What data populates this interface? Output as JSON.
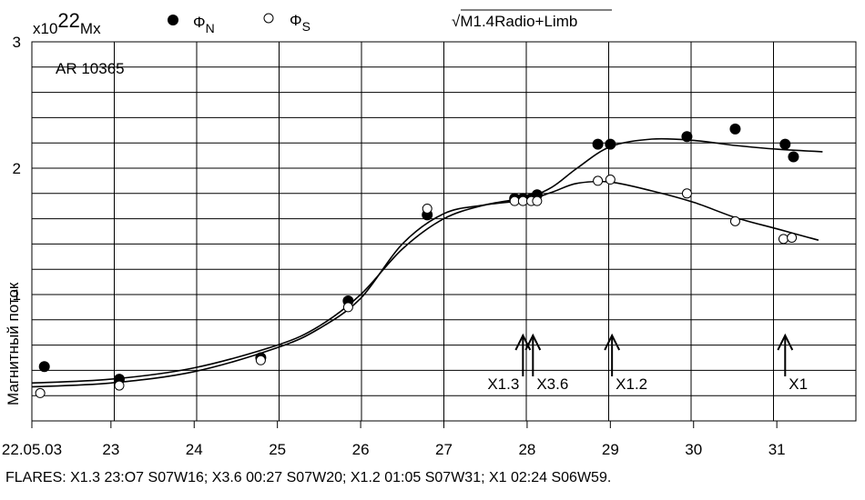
{
  "chart_data": {
    "type": "scatter",
    "unit_prefix": "x10",
    "unit_exp": "22",
    "unit_suffix": "Mx",
    "ylabel": "Магнитный поток",
    "ylim": [
      0,
      3
    ],
    "xlim": [
      22.05,
      31.95
    ],
    "yticks": [
      {
        "v": 1,
        "label": "1"
      },
      {
        "v": 2,
        "label": "2"
      },
      {
        "v": 3,
        "label": "3"
      }
    ],
    "xticks": [
      {
        "v": 22.05,
        "label": "22.05.03"
      },
      {
        "v": 23,
        "label": "23"
      },
      {
        "v": 24,
        "label": "24"
      },
      {
        "v": 25,
        "label": "25"
      },
      {
        "v": 26,
        "label": "26"
      },
      {
        "v": 27,
        "label": "27"
      },
      {
        "v": 28,
        "label": "28"
      },
      {
        "v": 29,
        "label": "29"
      },
      {
        "v": 30,
        "label": "30"
      },
      {
        "v": 31,
        "label": "31"
      }
    ],
    "region_label": "AR 10365",
    "event_label": "√M1.4Radio+Limb",
    "legend": [
      {
        "symbol": "filled",
        "sym": "Φ",
        "sub": "N"
      },
      {
        "symbol": "open",
        "sym": "Φ",
        "sub": "S"
      }
    ],
    "series": [
      {
        "key": "N",
        "marker": "filled",
        "points": [
          [
            22.2,
            0.43
          ],
          [
            23.1,
            0.33
          ],
          [
            24.8,
            0.5
          ],
          [
            25.85,
            0.95
          ],
          [
            26.8,
            1.63
          ],
          [
            27.85,
            1.76
          ],
          [
            27.95,
            1.76
          ],
          [
            28.05,
            1.76
          ],
          [
            28.12,
            1.79
          ],
          [
            28.85,
            2.19
          ],
          [
            29.0,
            2.19
          ],
          [
            29.92,
            2.25
          ],
          [
            30.5,
            2.31
          ],
          [
            31.1,
            2.19
          ],
          [
            31.2,
            2.09
          ]
        ],
        "fit": [
          [
            22.05,
            0.3
          ],
          [
            23.0,
            0.33
          ],
          [
            24.0,
            0.42
          ],
          [
            25.0,
            0.6
          ],
          [
            25.5,
            0.75
          ],
          [
            26.0,
            1.0
          ],
          [
            26.5,
            1.36
          ],
          [
            27.0,
            1.6
          ],
          [
            27.5,
            1.71
          ],
          [
            28.0,
            1.77
          ],
          [
            28.3,
            1.85
          ],
          [
            28.6,
            2.0
          ],
          [
            29.0,
            2.17
          ],
          [
            29.5,
            2.23
          ],
          [
            30.0,
            2.22
          ],
          [
            30.5,
            2.18
          ],
          [
            31.0,
            2.15
          ],
          [
            31.55,
            2.13
          ]
        ]
      },
      {
        "key": "S",
        "marker": "open",
        "points": [
          [
            22.15,
            0.22
          ],
          [
            23.1,
            0.28
          ],
          [
            24.8,
            0.48
          ],
          [
            25.85,
            0.9
          ],
          [
            26.8,
            1.68
          ],
          [
            27.85,
            1.74
          ],
          [
            27.95,
            1.74
          ],
          [
            28.05,
            1.74
          ],
          [
            28.12,
            1.74
          ],
          [
            28.85,
            1.9
          ],
          [
            29.0,
            1.91
          ],
          [
            29.92,
            1.8
          ],
          [
            30.5,
            1.58
          ],
          [
            31.08,
            1.44
          ],
          [
            31.18,
            1.45
          ]
        ],
        "fit": [
          [
            22.05,
            0.27
          ],
          [
            23.0,
            0.3
          ],
          [
            24.0,
            0.39
          ],
          [
            25.0,
            0.58
          ],
          [
            25.5,
            0.73
          ],
          [
            26.0,
            0.97
          ],
          [
            26.5,
            1.4
          ],
          [
            27.0,
            1.64
          ],
          [
            27.5,
            1.71
          ],
          [
            28.0,
            1.75
          ],
          [
            28.3,
            1.81
          ],
          [
            28.6,
            1.88
          ],
          [
            29.0,
            1.89
          ],
          [
            29.5,
            1.82
          ],
          [
            30.0,
            1.73
          ],
          [
            30.5,
            1.61
          ],
          [
            31.0,
            1.52
          ],
          [
            31.5,
            1.43
          ]
        ]
      }
    ],
    "flares": [
      {
        "x": 27.95,
        "label": "X1.3",
        "align": "right"
      },
      {
        "x": 28.07,
        "label": "X3.6",
        "align": "left"
      },
      {
        "x": 29.02,
        "label": "X1.2",
        "align": "left"
      },
      {
        "x": 31.1,
        "label": "X1",
        "align": "left"
      }
    ]
  },
  "footer": "FLARES: X1.3 23:O7 S07W16; X3.6 00:27 S07W20; X1.2 01:05 S07W31; X1 02:24 S06W59."
}
